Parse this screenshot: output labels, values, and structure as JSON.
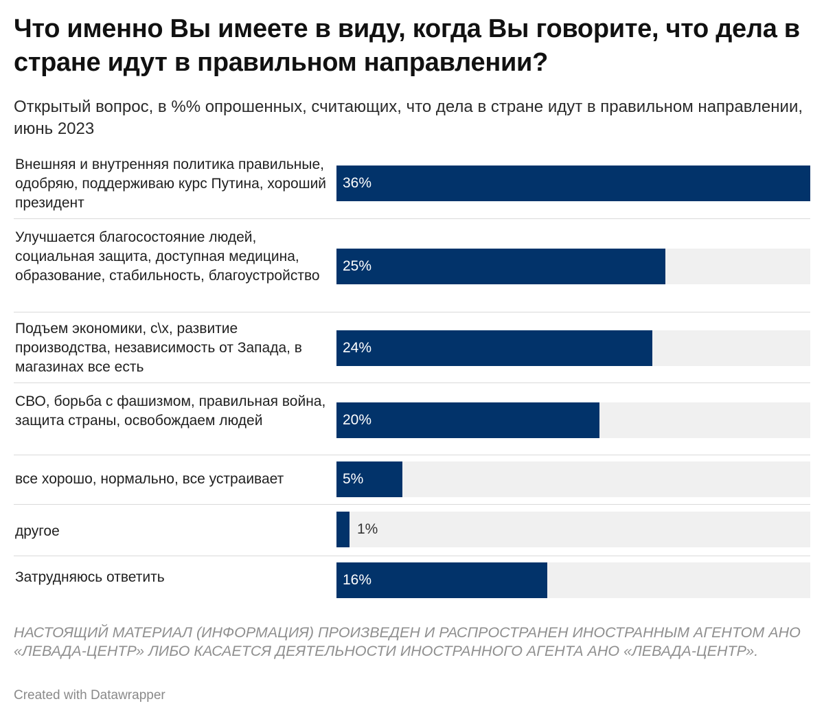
{
  "header": {
    "title": "Что именно Вы имеете в виду, когда Вы говорите, что дела в стране идут в правильном направлении?",
    "subtitle": "Открытый вопрос, в %% опрошенных, считающих, что дела в стране идут в правильном направлении, июнь 2023"
  },
  "chart_data": {
    "type": "bar",
    "orientation": "horizontal",
    "title": "Что именно Вы имеете в виду, когда Вы говорите, что дела в стране идут в правильном направлении?",
    "subtitle": "Открытый вопрос, в %% опрошенных, считающих, что дела в стране идут в правильном направлении, июнь 2023",
    "categories": [
      "Внешняя и внутренняя политика правильные, одобряю, поддерживаю курс Путина, хороший президент",
      "Улучшается благосостояние людей, социальная защита, доступная медицина, образование, стабильность, благоустройство",
      "Подъем экономики, с\\х, развитие производства, независимость от Запада, в магазинах все есть",
      "СВО, борьба с фашизмом, правильная война, защита страны, освобождаем людей",
      "все хорошо, нормально, все устраивает",
      "другое",
      "Затрудняюсь ответить"
    ],
    "values": [
      36,
      25,
      24,
      20,
      5,
      1,
      16
    ],
    "value_labels": [
      "36%",
      "25%",
      "24%",
      "20%",
      "5%",
      "1%",
      "16%"
    ],
    "xlim": [
      0,
      36
    ],
    "bar_color": "#02336a",
    "track_color": "#f0f0f0",
    "grid": false,
    "legend": "none"
  },
  "footer": {
    "notice": "НАСТОЯЩИЙ МАТЕРИАЛ (ИНФОРМАЦИЯ) ПРОИЗВЕДЕН И РАСПРОСТРАНЕН ИНОСТРАННЫМ АГЕНТОМ АНО «ЛЕВАДА-ЦЕНТР» ЛИБО КАСАЕТСЯ ДЕЯТЕЛЬНОСТИ ИНОСТРАННОГО АГЕНТА АНО «ЛЕВАДА-ЦЕНТР».",
    "credit": "Created with Datawrapper"
  }
}
